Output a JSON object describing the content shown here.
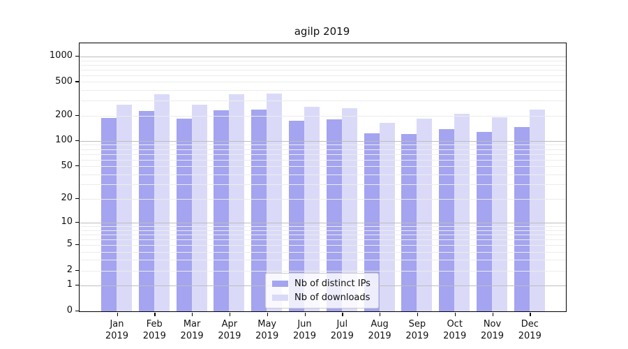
{
  "chart_data": {
    "type": "bar",
    "title": "agilp 2019",
    "xlabel": "",
    "ylabel": "",
    "categories": [
      "Jan",
      "Feb",
      "Mar",
      "Apr",
      "May",
      "Jun",
      "Jul",
      "Aug",
      "Sep",
      "Oct",
      "Nov",
      "Dec"
    ],
    "category_year": "2019",
    "series": [
      {
        "name": "Nb of distinct IPs",
        "color": "#a4a4f0",
        "values": [
          188,
          229,
          185,
          230,
          235,
          174,
          181,
          124,
          122,
          139,
          127,
          146
        ]
      },
      {
        "name": "Nb of downloads",
        "color": "#dadaf8",
        "values": [
          270,
          358,
          267,
          360,
          366,
          253,
          245,
          163,
          184,
          210,
          191,
          236
        ]
      }
    ],
    "yscale": "log1p",
    "y_ticks": [
      1000,
      500,
      200,
      100,
      50,
      20,
      10,
      5,
      2,
      1,
      0
    ],
    "ylim": [
      0,
      1440
    ],
    "grid": {
      "major_values": [
        1,
        10,
        100,
        1000
      ],
      "minor_values": [
        2,
        3,
        4,
        5,
        6,
        7,
        8,
        9,
        20,
        30,
        40,
        50,
        60,
        70,
        80,
        90,
        200,
        300,
        400,
        500,
        600,
        700,
        800,
        900
      ],
      "major_color": "#bdbdbd",
      "minor_color": "#ececec"
    },
    "legend_position": "lower-center-inside",
    "background_color": "#ffffff",
    "frame_color": "#000000"
  }
}
